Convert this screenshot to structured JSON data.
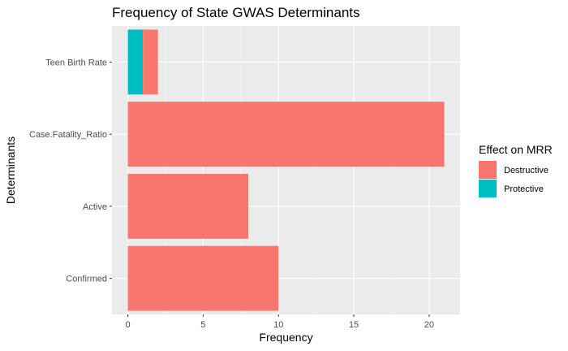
{
  "chart_data": {
    "type": "bar",
    "orientation": "horizontal",
    "stacked": true,
    "title": "Frequency of State GWAS Determinants",
    "xlabel": "Frequency",
    "ylabel": "Determinants",
    "xlim": [
      -1.05,
      22.05
    ],
    "x_ticks": [
      0,
      5,
      10,
      15,
      20
    ],
    "grid": true,
    "legend_position": "right",
    "legend_title": "Effect on MRR",
    "categories": [
      "Teen Birth Rate",
      "Case.Fatality_Ratio",
      "Active",
      "Confirmed"
    ],
    "series": [
      {
        "name": "Protective",
        "color": "#00BFC4",
        "values": [
          1,
          0,
          0,
          0
        ]
      },
      {
        "name": "Destructive",
        "color": "#F8766D",
        "values": [
          1,
          21,
          8,
          10
        ]
      }
    ],
    "legend_order": [
      "Destructive",
      "Protective"
    ]
  }
}
